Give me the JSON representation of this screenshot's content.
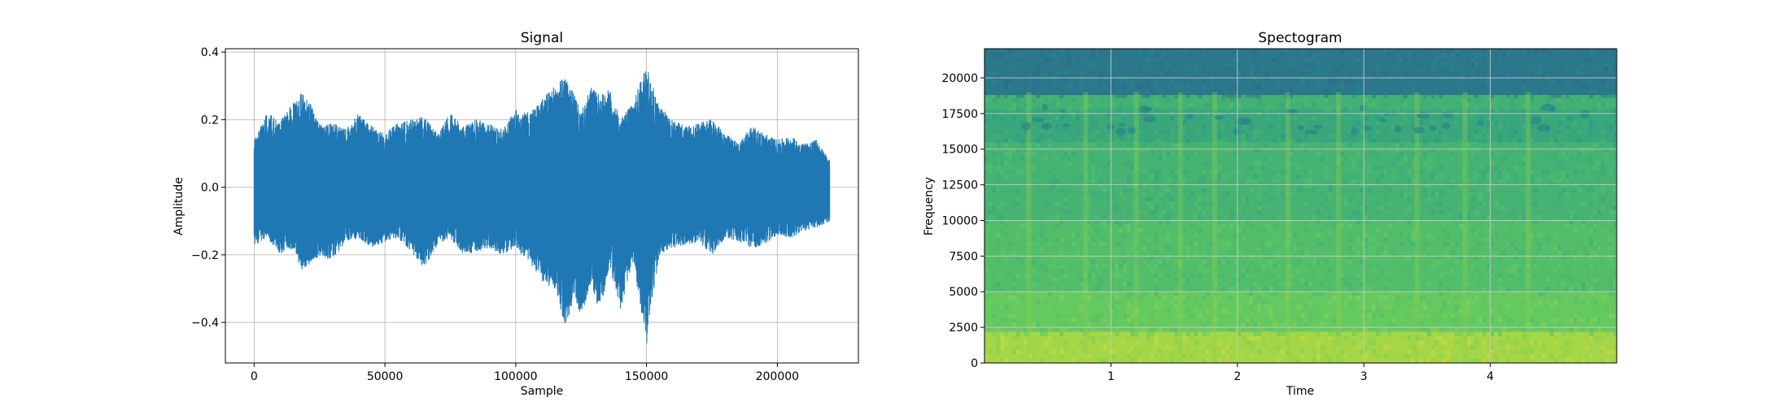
{
  "chart_data": [
    {
      "type": "line",
      "title": "Signal",
      "xlabel": "Sample",
      "ylabel": "Amplitude",
      "xlim": [
        -11000,
        231000
      ],
      "ylim": [
        -0.52,
        0.41
      ],
      "xticks": [
        0,
        50000,
        100000,
        150000,
        200000
      ],
      "xtick_labels": [
        "0",
        "50000",
        "100000",
        "150000",
        "200000"
      ],
      "yticks": [
        -0.4,
        -0.2,
        0.0,
        0.2,
        0.4
      ],
      "ytick_labels": [
        "−0.4",
        "−0.2",
        "0.0",
        "0.2",
        "0.4"
      ],
      "grid": true,
      "color": "#1f77b4",
      "series": [
        {
          "x": [
            0,
            5000,
            10000,
            15000,
            18000,
            22000,
            26000,
            30000,
            35000,
            40000,
            45000,
            50000,
            55000,
            60000,
            65000,
            70000,
            75000,
            80000,
            85000,
            90000,
            95000,
            100000,
            105000,
            110000,
            115000,
            119000,
            122000,
            125000,
            129000,
            132000,
            136000,
            140000,
            145000,
            150000,
            151000,
            155000,
            160000,
            165000,
            170000,
            175000,
            180000,
            185000,
            190000,
            195000,
            200000,
            205000,
            210000,
            215000,
            220000
          ],
          "y_max": [
            0.14,
            0.22,
            0.2,
            0.25,
            0.28,
            0.24,
            0.18,
            0.19,
            0.17,
            0.22,
            0.18,
            0.16,
            0.19,
            0.2,
            0.21,
            0.16,
            0.22,
            0.18,
            0.2,
            0.19,
            0.17,
            0.23,
            0.22,
            0.26,
            0.3,
            0.33,
            0.28,
            0.22,
            0.3,
            0.27,
            0.29,
            0.2,
            0.25,
            0.37,
            0.33,
            0.24,
            0.2,
            0.18,
            0.19,
            0.2,
            0.16,
            0.13,
            0.18,
            0.16,
            0.14,
            0.15,
            0.13,
            0.14,
            0.08
          ],
          "y_min": [
            -0.17,
            -0.15,
            -0.2,
            -0.18,
            -0.25,
            -0.22,
            -0.2,
            -0.22,
            -0.16,
            -0.15,
            -0.18,
            -0.16,
            -0.15,
            -0.19,
            -0.24,
            -0.17,
            -0.15,
            -0.2,
            -0.19,
            -0.18,
            -0.2,
            -0.18,
            -0.22,
            -0.28,
            -0.3,
            -0.42,
            -0.33,
            -0.38,
            -0.28,
            -0.38,
            -0.24,
            -0.36,
            -0.22,
            -0.47,
            -0.4,
            -0.2,
            -0.18,
            -0.17,
            -0.16,
            -0.2,
            -0.15,
            -0.16,
            -0.18,
            -0.17,
            -0.14,
            -0.15,
            -0.13,
            -0.12,
            -0.1
          ]
        }
      ]
    },
    {
      "type": "heatmap",
      "title": "Spectogram",
      "xlabel": "Time",
      "ylabel": "Frequency",
      "xlim": [
        0,
        5
      ],
      "ylim": [
        0,
        22050
      ],
      "xticks": [
        1,
        2,
        3,
        4
      ],
      "xtick_labels": [
        "1",
        "2",
        "3",
        "4"
      ],
      "yticks": [
        0,
        2500,
        5000,
        7500,
        10000,
        12500,
        15000,
        17500,
        20000
      ],
      "ytick_labels": [
        "0",
        "2500",
        "5000",
        "7500",
        "10000",
        "12500",
        "15000",
        "17500",
        "20000"
      ],
      "grid": true,
      "colormap": "viridis",
      "frequency_bands": [
        {
          "from": 0,
          "to": 2200,
          "level": 0.86
        },
        {
          "from": 2200,
          "to": 5000,
          "level": 0.76
        },
        {
          "from": 5000,
          "to": 10000,
          "level": 0.7
        },
        {
          "from": 10000,
          "to": 15500,
          "level": 0.65
        },
        {
          "from": 15500,
          "to": 17800,
          "level": 0.6
        },
        {
          "from": 17800,
          "to": 18800,
          "level": 0.64
        },
        {
          "from": 18800,
          "to": 22050,
          "level": 0.4
        }
      ],
      "bright_times": [
        0.35,
        0.8,
        1.2,
        1.55,
        1.82,
        2.4,
        2.8,
        3.42,
        3.8,
        4.3
      ]
    }
  ]
}
